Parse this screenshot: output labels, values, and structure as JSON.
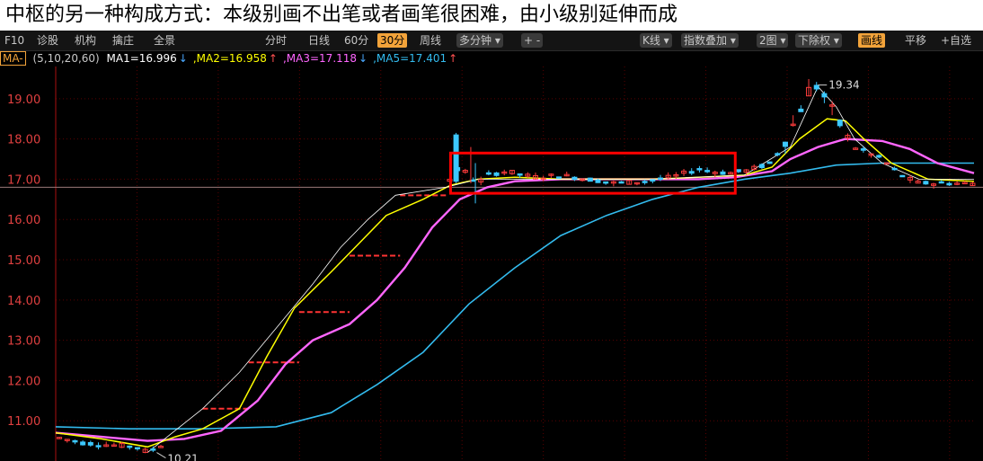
{
  "caption": "中枢的另一种构成方式：本级别画不出笔或者画笔很困难，由小级别延伸而成",
  "toolbar": {
    "left_items": [
      "F10",
      "诊股",
      "机构",
      "擒庄",
      "全景"
    ],
    "periods": [
      "分时",
      "日线",
      "60分",
      "30分",
      "周线",
      "多分钟 ▾",
      "+  -"
    ],
    "active_period": "30分",
    "right_items": [
      "K线 ▾",
      "指数叠加 ▾",
      "2图 ▾",
      "下除权 ▾",
      "画线",
      "平移",
      "+自选"
    ],
    "highlight_item": "画线"
  },
  "ma_bar": {
    "selector": "MA-",
    "params": "(5,10,20,60)",
    "items": [
      {
        "label": "MA1=16.996",
        "arrow": "↓",
        "color": "#ffffff",
        "arrow_color": "#4aa8ff"
      },
      {
        "label": ",MA2=16.958",
        "arrow": "↑",
        "color": "#ffff00",
        "arrow_color": "#ff5050"
      },
      {
        "label": ",MA3=17.118",
        "arrow": "↓",
        "color": "#ff66ff",
        "arrow_color": "#4aa8ff"
      },
      {
        "label": ",MA5=17.401",
        "arrow": "↑",
        "color": "#33bbee",
        "arrow_color": "#ff5050"
      }
    ]
  },
  "colors": {
    "background": "#000000",
    "grid": "#5a0000",
    "axis_text": "#e04040",
    "up": "#ff3c3c",
    "down": "#3cc8ff",
    "ma1": "#ffffff",
    "ma2": "#ffff00",
    "ma3": "#ff66ff",
    "ma5": "#33bbee",
    "box": "#ff0000",
    "dash": "#ff3333"
  },
  "chart_data": {
    "type": "candlestick",
    "ylim": [
      10.0,
      19.8
    ],
    "yticks": [
      "11.00",
      "12.00",
      "13.00",
      "14.00",
      "15.00",
      "16.00",
      "17.00",
      "18.00",
      "19.00"
    ],
    "grid": true,
    "annotations": [
      {
        "text": "10.21",
        "value": 10.21
      },
      {
        "text": "19.34",
        "value": 19.34
      }
    ],
    "box": {
      "x_from": 0.43,
      "x_to": 0.74,
      "y_from": 16.65,
      "y_to": 17.65
    },
    "ref_line": 16.8,
    "steps": [
      {
        "x_from": 0.16,
        "x_to": 0.21,
        "y": 11.3
      },
      {
        "x_from": 0.21,
        "x_to": 0.265,
        "y": 12.45
      },
      {
        "x_from": 0.265,
        "x_to": 0.32,
        "y": 13.7
      },
      {
        "x_from": 0.32,
        "x_to": 0.375,
        "y": 15.1
      },
      {
        "x_from": 0.375,
        "x_to": 0.425,
        "y": 16.6
      }
    ],
    "price_path": [
      [
        0.0,
        10.6
      ],
      [
        0.03,
        10.45
      ],
      [
        0.06,
        10.4
      ],
      [
        0.09,
        10.35
      ],
      [
        0.1,
        10.21
      ],
      [
        0.13,
        10.6
      ],
      [
        0.16,
        11.3
      ],
      [
        0.2,
        11.8
      ],
      [
        0.24,
        12.9
      ],
      [
        0.28,
        13.9
      ],
      [
        0.31,
        14.6
      ],
      [
        0.34,
        15.5
      ],
      [
        0.37,
        16.2
      ],
      [
        0.4,
        16.5
      ],
      [
        0.425,
        16.9
      ],
      [
        0.44,
        17.3
      ],
      [
        0.46,
        16.9
      ],
      [
        0.47,
        17.1
      ],
      [
        0.49,
        17.2
      ],
      [
        0.52,
        17.05
      ],
      [
        0.55,
        17.1
      ],
      [
        0.58,
        17.0
      ],
      [
        0.61,
        16.9
      ],
      [
        0.64,
        16.95
      ],
      [
        0.67,
        17.05
      ],
      [
        0.7,
        17.25
      ],
      [
        0.73,
        17.15
      ],
      [
        0.75,
        17.2
      ],
      [
        0.78,
        17.4
      ],
      [
        0.8,
        18.2
      ],
      [
        0.82,
        19.2
      ],
      [
        0.83,
        19.34
      ],
      [
        0.85,
        18.5
      ],
      [
        0.87,
        17.8
      ],
      [
        0.9,
        17.5
      ],
      [
        0.92,
        17.1
      ],
      [
        0.94,
        16.9
      ],
      [
        0.97,
        16.9
      ],
      [
        1.0,
        16.9
      ]
    ],
    "ma_paths": {
      "ma1": [
        [
          0.1,
          10.21
        ],
        [
          0.16,
          11.3
        ],
        [
          0.2,
          12.2
        ],
        [
          0.24,
          13.3
        ],
        [
          0.28,
          14.4
        ],
        [
          0.31,
          15.3
        ],
        [
          0.34,
          16.0
        ],
        [
          0.37,
          16.6
        ],
        [
          0.425,
          16.8
        ],
        [
          0.46,
          17.0
        ],
        [
          0.55,
          17.0
        ],
        [
          0.65,
          17.0
        ],
        [
          0.75,
          17.1
        ],
        [
          0.8,
          17.8
        ],
        [
          0.83,
          19.3
        ],
        [
          0.85,
          18.8
        ],
        [
          0.87,
          18.0
        ],
        [
          0.9,
          17.4
        ],
        [
          0.94,
          17.0
        ],
        [
          1.0,
          17.0
        ]
      ],
      "ma2": [
        [
          0.0,
          10.7
        ],
        [
          0.05,
          10.55
        ],
        [
          0.1,
          10.35
        ],
        [
          0.13,
          10.6
        ],
        [
          0.16,
          10.8
        ],
        [
          0.2,
          11.3
        ],
        [
          0.23,
          12.6
        ],
        [
          0.26,
          13.8
        ],
        [
          0.3,
          14.7
        ],
        [
          0.33,
          15.4
        ],
        [
          0.36,
          16.1
        ],
        [
          0.4,
          16.5
        ],
        [
          0.43,
          16.85
        ],
        [
          0.46,
          17.0
        ],
        [
          0.5,
          17.05
        ],
        [
          0.55,
          17.0
        ],
        [
          0.6,
          17.0
        ],
        [
          0.65,
          17.0
        ],
        [
          0.7,
          17.05
        ],
        [
          0.75,
          17.1
        ],
        [
          0.78,
          17.3
        ],
        [
          0.81,
          18.0
        ],
        [
          0.84,
          18.5
        ],
        [
          0.86,
          18.45
        ],
        [
          0.88,
          18.0
        ],
        [
          0.91,
          17.4
        ],
        [
          0.95,
          17.0
        ],
        [
          1.0,
          16.95
        ]
      ],
      "ma3": [
        [
          0.0,
          10.7
        ],
        [
          0.05,
          10.6
        ],
        [
          0.1,
          10.5
        ],
        [
          0.14,
          10.55
        ],
        [
          0.18,
          10.75
        ],
        [
          0.22,
          11.5
        ],
        [
          0.25,
          12.4
        ],
        [
          0.28,
          13.0
        ],
        [
          0.32,
          13.4
        ],
        [
          0.35,
          14.0
        ],
        [
          0.38,
          14.8
        ],
        [
          0.41,
          15.8
        ],
        [
          0.44,
          16.5
        ],
        [
          0.47,
          16.8
        ],
        [
          0.5,
          16.95
        ],
        [
          0.55,
          17.0
        ],
        [
          0.6,
          17.0
        ],
        [
          0.65,
          17.0
        ],
        [
          0.7,
          17.0
        ],
        [
          0.74,
          17.05
        ],
        [
          0.78,
          17.2
        ],
        [
          0.8,
          17.5
        ],
        [
          0.83,
          17.8
        ],
        [
          0.86,
          18.0
        ],
        [
          0.9,
          17.95
        ],
        [
          0.93,
          17.75
        ],
        [
          0.96,
          17.4
        ],
        [
          1.0,
          17.15
        ]
      ],
      "ma5": [
        [
          0.0,
          10.85
        ],
        [
          0.08,
          10.8
        ],
        [
          0.16,
          10.8
        ],
        [
          0.24,
          10.85
        ],
        [
          0.3,
          11.2
        ],
        [
          0.35,
          11.9
        ],
        [
          0.4,
          12.7
        ],
        [
          0.45,
          13.9
        ],
        [
          0.5,
          14.8
        ],
        [
          0.55,
          15.6
        ],
        [
          0.6,
          16.1
        ],
        [
          0.65,
          16.5
        ],
        [
          0.7,
          16.8
        ],
        [
          0.75,
          17.0
        ],
        [
          0.8,
          17.15
        ],
        [
          0.85,
          17.35
        ],
        [
          0.9,
          17.4
        ],
        [
          0.95,
          17.4
        ],
        [
          1.0,
          17.4
        ]
      ]
    }
  }
}
